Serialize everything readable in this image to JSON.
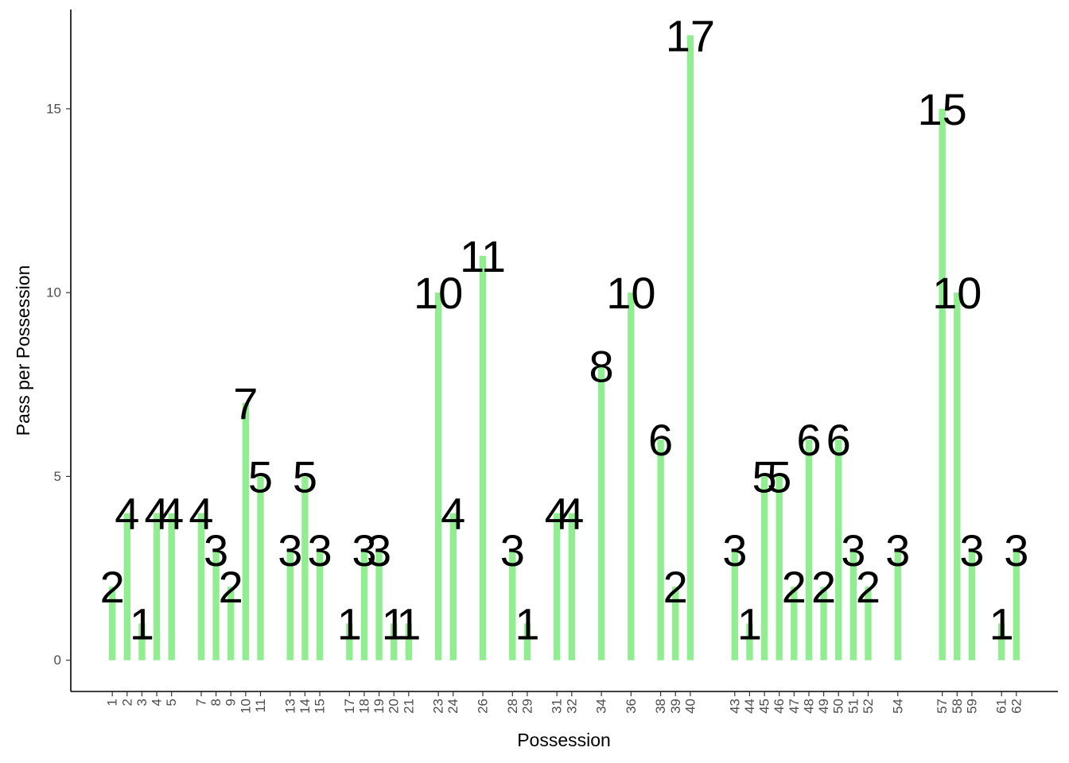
{
  "chart_data": {
    "type": "bar",
    "title": "",
    "xlabel": "Possession",
    "ylabel": "Pass per Possession",
    "ylim": [
      -0.85,
      17.7
    ],
    "xlim": [
      -1.8,
      64.8
    ],
    "yticks": [
      0,
      5,
      10,
      15
    ],
    "grid": false,
    "legend": "none",
    "bar_color": "#90EE90",
    "categories": [
      "1",
      "2",
      "3",
      "4",
      "5",
      "7",
      "8",
      "9",
      "10",
      "11",
      "13",
      "14",
      "15",
      "17",
      "18",
      "19",
      "20",
      "21",
      "23",
      "24",
      "26",
      "28",
      "29",
      "31",
      "32",
      "34",
      "36",
      "38",
      "39",
      "40",
      "43",
      "44",
      "45",
      "46",
      "47",
      "48",
      "49",
      "50",
      "51",
      "52",
      "54",
      "57",
      "58",
      "59",
      "61",
      "62"
    ],
    "values": [
      2,
      4,
      1,
      4,
      4,
      4,
      3,
      2,
      7,
      5,
      3,
      5,
      3,
      1,
      3,
      3,
      1,
      1,
      10,
      4,
      11,
      3,
      1,
      4,
      4,
      8,
      10,
      6,
      2,
      17,
      3,
      1,
      5,
      5,
      2,
      6,
      2,
      6,
      3,
      2,
      3,
      15,
      10,
      3,
      1,
      3
    ]
  }
}
